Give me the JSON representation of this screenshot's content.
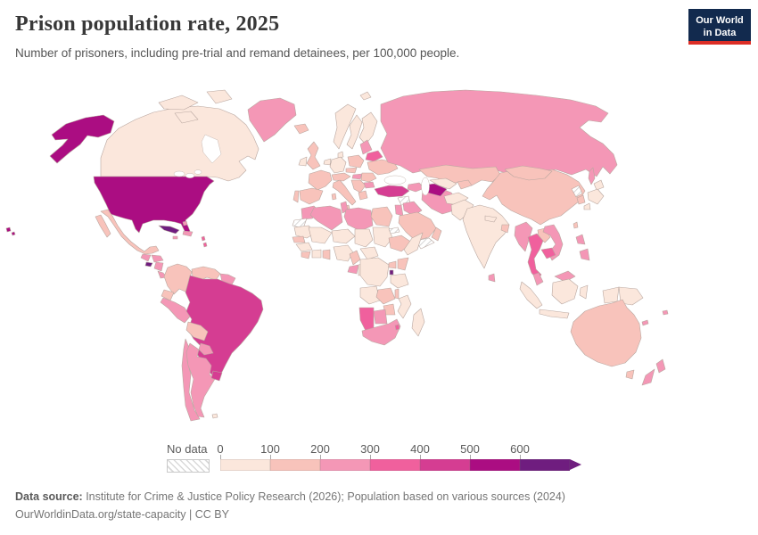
{
  "header": {
    "title": "Prison population rate, 2025",
    "subtitle": "Number of prisoners, including pre-trial and remand detainees, per 100,000 people.",
    "logo": {
      "line1": "Our World",
      "line2": "in Data",
      "bg_color": "#122a4e",
      "accent_color": "#dc2e26"
    }
  },
  "legend": {
    "no_data_label": "No data",
    "ticks": [
      "0",
      "100",
      "200",
      "300",
      "400",
      "500",
      "600"
    ]
  },
  "footer": {
    "source_label": "Data source:",
    "source_text": " Institute for Crime & Justice Policy Research (2026); Population based on various sources (2024)",
    "link_text": "OurWorldinData.org/state-capacity | CC BY"
  },
  "chart_data": {
    "type": "heatmap",
    "variant": "choropleth-world-map",
    "title": "Prison population rate, 2025",
    "unit": "prisoners per 100,000 people",
    "year": "2025",
    "legend_position": "bottom",
    "legend_bins": [
      {
        "label": "0-100",
        "color": "#fbe7dc"
      },
      {
        "label": "100-200",
        "color": "#f8c3bb"
      },
      {
        "label": "200-300",
        "color": "#f497b6"
      },
      {
        "label": "300-400",
        "color": "#f0609d"
      },
      {
        "label": "400-500",
        "color": "#d53d92"
      },
      {
        "label": "500-600",
        "color": "#ab0d82"
      },
      {
        "label": "600+",
        "color": "#6f1d7f"
      }
    ],
    "no_data_style": "hatched",
    "countries": {
      "united-states": {
        "name": "United States",
        "bin": 5
      },
      "canada": {
        "name": "Canada",
        "bin": 0
      },
      "greenland": {
        "name": "Greenland",
        "bin": 2
      },
      "mexico": {
        "name": "Mexico",
        "bin": 1
      },
      "guatemala": {
        "name": "Guatemala",
        "bin": 2
      },
      "el-salvador": {
        "name": "El Salvador",
        "bin": 6
      },
      "honduras": {
        "name": "Honduras",
        "bin": 2
      },
      "nicaragua": {
        "name": "Nicaragua",
        "bin": 2
      },
      "costa-rica": {
        "name": "Costa Rica",
        "bin": 2
      },
      "panama": {
        "name": "Panama",
        "bin": 4
      },
      "cuba": {
        "name": "Cuba",
        "bin": 6
      },
      "hispaniola": {
        "name": "Haiti / Dominican Republic",
        "bin": 2
      },
      "jamaica": {
        "name": "Jamaica",
        "bin": 2
      },
      "bahamas": {
        "name": "Bahamas",
        "bin": 2
      },
      "lesser-antilles": {
        "name": "Lesser Antilles",
        "bin": 3
      },
      "colombia": {
        "name": "Colombia",
        "bin": 1
      },
      "venezuela": {
        "name": "Venezuela",
        "bin": 1
      },
      "guyanas": {
        "name": "Guyana / Suriname / Fr. Guiana",
        "bin": 2
      },
      "ecuador": {
        "name": "Ecuador",
        "bin": 1
      },
      "peru": {
        "name": "Peru",
        "bin": 2
      },
      "brazil": {
        "name": "Brazil",
        "bin": 4
      },
      "bolivia": {
        "name": "Bolivia",
        "bin": 1
      },
      "paraguay": {
        "name": "Paraguay",
        "bin": 2
      },
      "uruguay": {
        "name": "Uruguay",
        "bin": 4
      },
      "argentina": {
        "name": "Argentina",
        "bin": 2
      },
      "chile": {
        "name": "Chile",
        "bin": 2
      },
      "falkland-islands": {
        "name": "Falkland Islands",
        "bin": 0
      },
      "iceland": {
        "name": "Iceland",
        "bin": 1
      },
      "norway": {
        "name": "Norway",
        "bin": 0
      },
      "sweden": {
        "name": "Sweden",
        "bin": 0
      },
      "finland": {
        "name": "Finland",
        "bin": 0
      },
      "denmark": {
        "name": "Denmark",
        "bin": 0
      },
      "united-kingdom": {
        "name": "United Kingdom",
        "bin": 1
      },
      "ireland": {
        "name": "Ireland",
        "bin": 0
      },
      "france": {
        "name": "France",
        "bin": 1
      },
      "spain": {
        "name": "Spain",
        "bin": 1
      },
      "portugal": {
        "name": "Portugal",
        "bin": 1
      },
      "benelux": {
        "name": "Belgium / Netherlands",
        "bin": 0
      },
      "germany": {
        "name": "Germany",
        "bin": 0
      },
      "austria-switzerland": {
        "name": "Austria / Switzerland",
        "bin": 1
      },
      "italy": {
        "name": "Italy",
        "bin": 1
      },
      "poland": {
        "name": "Poland",
        "bin": 1
      },
      "czechia-slovakia": {
        "name": "Czechia / Slovakia",
        "bin": 1
      },
      "hungary": {
        "name": "Hungary",
        "bin": 2
      },
      "romania": {
        "name": "Romania",
        "bin": 1
      },
      "balkans": {
        "name": "Balkans",
        "bin": 1
      },
      "greece": {
        "name": "Greece",
        "bin": 1
      },
      "bulgaria": {
        "name": "Bulgaria",
        "bin": 2
      },
      "baltic-states": {
        "name": "Baltic states",
        "bin": 2
      },
      "belarus": {
        "name": "Belarus",
        "bin": 3
      },
      "ukraine": {
        "name": "Ukraine",
        "bin": 1
      },
      "russia": {
        "name": "Russia",
        "bin": 2
      },
      "svalbard": {
        "name": "Svalbard",
        "bin": 0
      },
      "turkey": {
        "name": "Turkey",
        "bin": 4
      },
      "caucasus": {
        "name": "Georgia / Armenia / Azerbaijan",
        "bin": 2
      },
      "syria": {
        "name": "Syria",
        "bin": "nodata"
      },
      "iraq": {
        "name": "Iraq",
        "bin": 2
      },
      "israel-jordan": {
        "name": "Israel / Jordan",
        "bin": 2
      },
      "saudi-arabia": {
        "name": "Saudi Arabia",
        "bin": 1
      },
      "yemen": {
        "name": "Yemen",
        "bin": "nodata"
      },
      "oman": {
        "name": "Oman",
        "bin": 1
      },
      "iran": {
        "name": "Iran",
        "bin": 2
      },
      "kazakhstan": {
        "name": "Kazakhstan",
        "bin": 1
      },
      "uzbekistan": {
        "name": "Uzbekistan",
        "bin": 0
      },
      "turkmenistan": {
        "name": "Turkmenistan",
        "bin": 5
      },
      "kyrgyzstan-tajikistan": {
        "name": "Kyrgyzstan / Tajikistan",
        "bin": 1
      },
      "afghanistan": {
        "name": "Afghanistan",
        "bin": 0
      },
      "pakistan": {
        "name": "Pakistan",
        "bin": 0
      },
      "india": {
        "name": "India",
        "bin": 0
      },
      "nepal": {
        "name": "Nepal",
        "bin": 0
      },
      "bangladesh": {
        "name": "Bangladesh",
        "bin": 1
      },
      "sri-lanka": {
        "name": "Sri Lanka",
        "bin": 2
      },
      "china": {
        "name": "China",
        "bin": 1
      },
      "mongolia": {
        "name": "Mongolia",
        "bin": 1
      },
      "north-korea": {
        "name": "North Korea",
        "bin": "nodata"
      },
      "south-korea": {
        "name": "South Korea",
        "bin": 1
      },
      "japan": {
        "name": "Japan",
        "bin": 0
      },
      "taiwan": {
        "name": "Taiwan",
        "bin": 1
      },
      "myanmar": {
        "name": "Myanmar",
        "bin": 2
      },
      "thailand": {
        "name": "Thailand",
        "bin": 3
      },
      "laos": {
        "name": "Laos",
        "bin": 1
      },
      "cambodia": {
        "name": "Cambodia",
        "bin": 3
      },
      "vietnam": {
        "name": "Vietnam",
        "bin": 2
      },
      "malaysia": {
        "name": "Malaysia",
        "bin": 2
      },
      "indonesia": {
        "name": "Indonesia",
        "bin": 0
      },
      "papua-new-guinea": {
        "name": "Papua New Guinea",
        "bin": 0
      },
      "philippines": {
        "name": "Philippines",
        "bin": 2
      },
      "australia": {
        "name": "Australia",
        "bin": 1
      },
      "new-zealand": {
        "name": "New Zealand",
        "bin": 2
      },
      "fiji": {
        "name": "Fiji",
        "bin": 2
      },
      "new-caledonia": {
        "name": "New Caledonia",
        "bin": 2
      },
      "morocco": {
        "name": "Morocco",
        "bin": 2
      },
      "western-sahara": {
        "name": "Western Sahara",
        "bin": "nodata"
      },
      "algeria": {
        "name": "Algeria",
        "bin": 2
      },
      "tunisia": {
        "name": "Tunisia",
        "bin": 2
      },
      "libya": {
        "name": "Libya",
        "bin": 2
      },
      "egypt": {
        "name": "Egypt",
        "bin": 1
      },
      "mauritania": {
        "name": "Mauritania",
        "bin": 0
      },
      "mali": {
        "name": "Mali",
        "bin": 0
      },
      "niger": {
        "name": "Niger",
        "bin": 0
      },
      "chad": {
        "name": "Chad",
        "bin": 0
      },
      "sudan": {
        "name": "Sudan",
        "bin": 0
      },
      "eritrea": {
        "name": "Eritrea",
        "bin": "nodata"
      },
      "ethiopia": {
        "name": "Ethiopia",
        "bin": 1
      },
      "somalia": {
        "name": "Somalia",
        "bin": 0
      },
      "senegal": {
        "name": "Senegal",
        "bin": 1
      },
      "guinea": {
        "name": "Guinea",
        "bin": 0
      },
      "sierra-leone-liberia": {
        "name": "Sierra Leone / Liberia",
        "bin": 1
      },
      "cote-divoire": {
        "name": "Côte d'Ivoire",
        "bin": 0
      },
      "ghana": {
        "name": "Ghana",
        "bin": 1
      },
      "nigeria": {
        "name": "Nigeria",
        "bin": 0
      },
      "cameroon": {
        "name": "Cameroon",
        "bin": 1
      },
      "central-african-republic": {
        "name": "Central African Republic",
        "bin": 0
      },
      "gabon": {
        "name": "Gabon",
        "bin": 2
      },
      "congo": {
        "name": "Congo",
        "bin": 0
      },
      "dr-congo": {
        "name": "Democratic Republic of Congo",
        "bin": 0
      },
      "uganda": {
        "name": "Uganda",
        "bin": 1
      },
      "kenya": {
        "name": "Kenya",
        "bin": 1
      },
      "rwanda": {
        "name": "Rwanda",
        "bin": 6
      },
      "tanzania": {
        "name": "Tanzania",
        "bin": 0
      },
      "angola": {
        "name": "Angola",
        "bin": 0
      },
      "zambia": {
        "name": "Zambia",
        "bin": 1
      },
      "malawi": {
        "name": "Malawi",
        "bin": 1
      },
      "mozambique": {
        "name": "Mozambique",
        "bin": 0
      },
      "zimbabwe": {
        "name": "Zimbabwe",
        "bin": 1
      },
      "botswana": {
        "name": "Botswana",
        "bin": 2
      },
      "namibia": {
        "name": "Namibia",
        "bin": 3
      },
      "south-africa": {
        "name": "South Africa",
        "bin": 2
      },
      "eswatini": {
        "name": "Eswatini",
        "bin": 3
      },
      "madagascar": {
        "name": "Madagascar",
        "bin": 0
      }
    }
  }
}
